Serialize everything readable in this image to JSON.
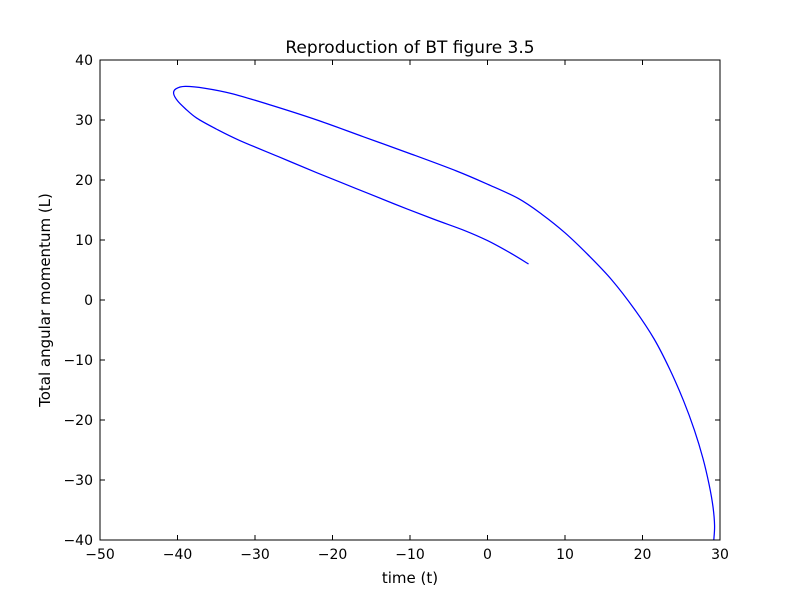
{
  "chart_data": {
    "type": "line",
    "title": "Reproduction of BT figure 3.5",
    "xlabel": "time (t)",
    "ylabel": "Total angular momentum (L)",
    "xlim": [
      -50,
      30
    ],
    "ylim": [
      -40,
      40
    ],
    "xticks": [
      -50,
      -40,
      -30,
      -20,
      -10,
      0,
      10,
      20,
      30
    ],
    "yticks": [
      -40,
      -30,
      -20,
      -10,
      0,
      10,
      20,
      30,
      40
    ],
    "xtick_labels": [
      "−50",
      "−40",
      "−30",
      "−20",
      "−10",
      "0",
      "10",
      "20",
      "30"
    ],
    "ytick_labels": [
      "−40",
      "−30",
      "−20",
      "−10",
      "0",
      "10",
      "20",
      "30",
      "40"
    ],
    "grid": false,
    "line_color": "#0000ff",
    "series": [
      {
        "x": [
          5.3,
          3.0,
          0.0,
          -3.0,
          -7.0,
          -12.0,
          -17.0,
          -22.0,
          -27.0,
          -32.0,
          -35.0,
          -37.5,
          -39.0,
          -40.0,
          -40.5,
          -40.2,
          -39.0,
          -36.5,
          -33.0,
          -28.0,
          -22.0,
          -16.0,
          -10.0,
          -4.0,
          0.0,
          4.0,
          7.0,
          10.0,
          13.0,
          16.0,
          19.0,
          21.5,
          23.5,
          25.3,
          26.7,
          27.8,
          28.6,
          29.1,
          29.3,
          29.2
        ],
        "y": [
          6.0,
          7.8,
          9.9,
          11.6,
          13.5,
          16.0,
          18.6,
          21.2,
          23.9,
          26.6,
          28.5,
          30.3,
          31.9,
          33.2,
          34.4,
          35.2,
          35.6,
          35.3,
          34.4,
          32.5,
          30.0,
          27.2,
          24.4,
          21.5,
          19.3,
          16.9,
          14.3,
          11.2,
          7.5,
          3.4,
          -1.6,
          -6.5,
          -11.5,
          -16.8,
          -21.7,
          -26.4,
          -30.8,
          -34.5,
          -37.6,
          -40.0
        ]
      }
    ]
  }
}
